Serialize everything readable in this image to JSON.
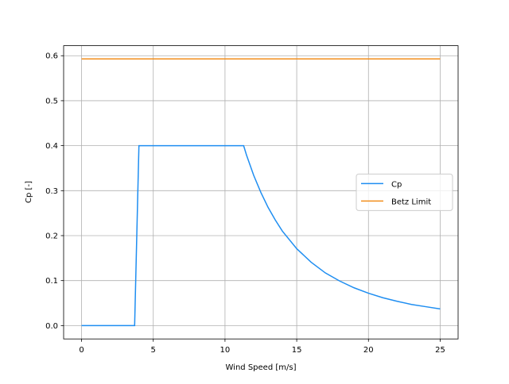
{
  "chart_data": {
    "type": "line",
    "xlabel": "Wind Speed [m/s]",
    "ylabel": "Cp [-]",
    "xlim": [
      -1.25,
      26.25
    ],
    "xticks": [
      0,
      5,
      10,
      15,
      20,
      25
    ],
    "ylim": [
      -0.0297,
      0.6223
    ],
    "yticks": [
      {
        "value": 0,
        "label": "0.0"
      },
      0.1,
      0.2,
      0.3,
      0.4,
      0.5,
      0.6
    ],
    "grid": true,
    "legend": "center right",
    "series": [
      {
        "name": "Cp",
        "color": "#1f8ef1",
        "x": [
          0,
          3.7,
          4.0,
          11.3,
          11.5,
          12,
          12.5,
          13,
          13.5,
          14,
          15,
          16,
          17,
          18,
          19,
          20,
          21,
          22,
          23,
          24,
          25
        ],
        "values": [
          0,
          0,
          0.4,
          0.4,
          0.379,
          0.334,
          0.296,
          0.263,
          0.235,
          0.21,
          0.171,
          0.141,
          0.117,
          0.099,
          0.084,
          0.072,
          0.062,
          0.054,
          0.047,
          0.042,
          0.037
        ]
      },
      {
        "name": "Betz Limit",
        "color": "#f28e1c",
        "x": [
          0,
          25
        ],
        "values": [
          0.593,
          0.593
        ]
      }
    ]
  }
}
